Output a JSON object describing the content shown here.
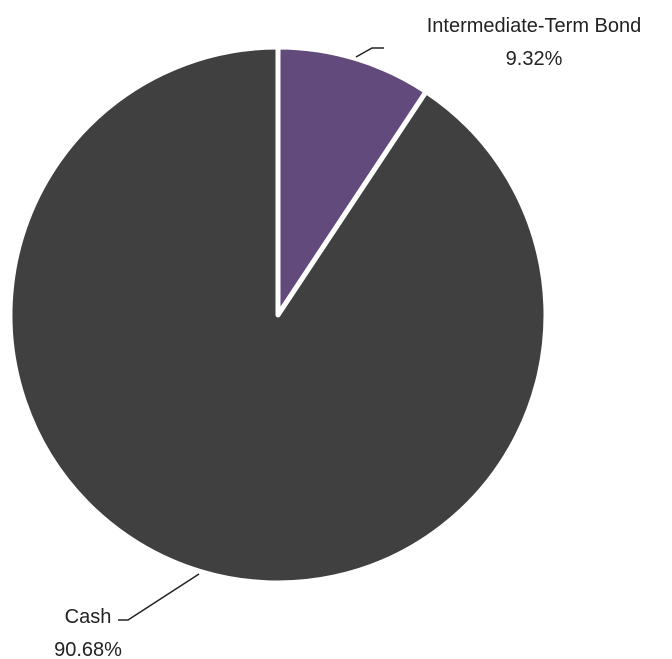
{
  "chart_data": {
    "type": "pie",
    "title": "",
    "slices": [
      {
        "label": "Intermediate-Term Bond",
        "value": 9.32,
        "value_label": "9.32%",
        "color": "#624a7c"
      },
      {
        "label": "Cash",
        "value": 90.68,
        "value_label": "90.68%",
        "color": "#404040"
      }
    ],
    "start_angle": "12 o'clock",
    "direction": "clockwise",
    "slice_border_color": "#ffffff",
    "leader_line_color": "#222222",
    "legend": "none"
  }
}
